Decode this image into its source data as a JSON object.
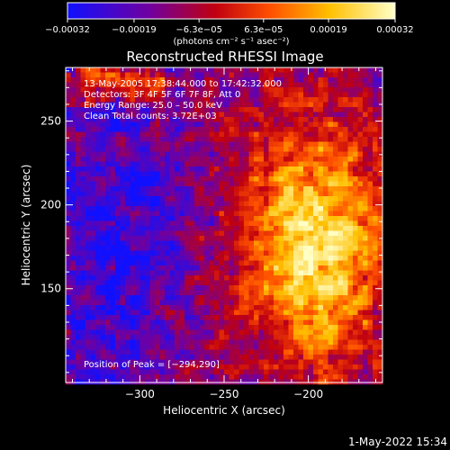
{
  "chart_data": {
    "type": "heatmap",
    "title": "Reconstructed RHESSI Image",
    "xlabel": "Heliocentric X (arcsec)",
    "ylabel": "Heliocentric Y (arcsec)",
    "xlim": [
      -344,
      -156
    ],
    "ylim": [
      94,
      282
    ],
    "xticks": [
      -300,
      -250,
      -200
    ],
    "xtick_labels": [
      "−300",
      "−250",
      "−200"
    ],
    "yticks": [
      150,
      200,
      250
    ],
    "ytick_labels": [
      "150",
      "200",
      "250"
    ],
    "colorbar": {
      "vmin": -0.00032,
      "vmax": 0.00032,
      "tick_values": [
        -0.00032,
        -0.00019,
        -6.3e-05,
        6.3e-05,
        0.00019,
        0.00032
      ],
      "tick_labels": [
        "−0.00032",
        "−0.00019",
        "−6.3e−05",
        "6.3e−05",
        "0.00019",
        "0.00032"
      ],
      "unit_label": "(photons cm⁻² s⁻¹ asec⁻²)",
      "colors": [
        "#1010ff",
        "#7000a0",
        "#c00010",
        "#ff5000",
        "#ffc000",
        "#ffffc8"
      ]
    },
    "annotations": [
      "13‑May‑2005 17:38:44.000 to 17:42:32.000",
      "Detectors: 3F 4F 5F 6F 7F 8F, Att 0",
      "Energy Range: 25.0 – 50.0 keV",
      "Clean     Total counts: 3.72E+03"
    ],
    "peak_label": "Position of Peak = [−294,290]",
    "grid": false
  },
  "footer": {
    "timestamp": "1‑May‑2022 15:34"
  }
}
